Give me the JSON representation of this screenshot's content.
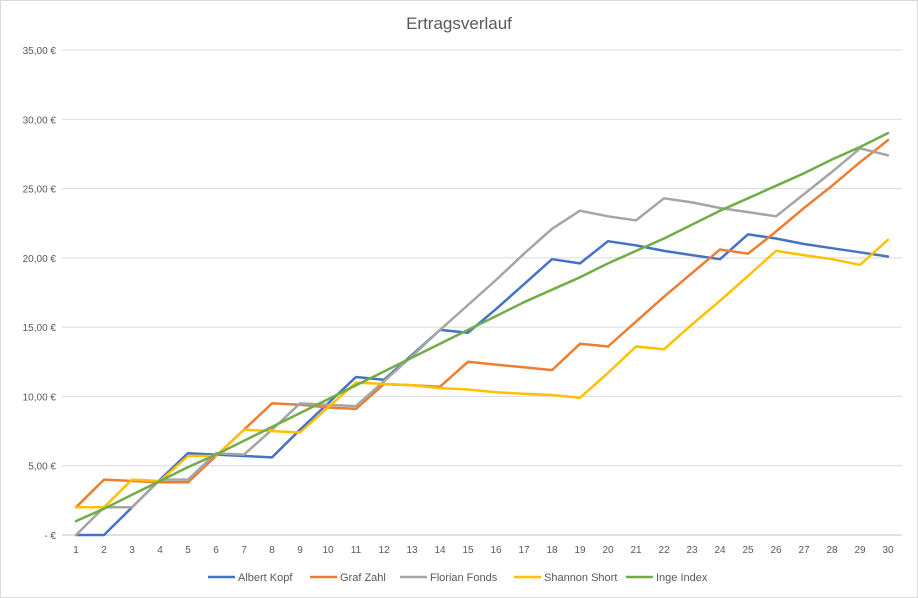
{
  "chart_data": {
    "type": "line",
    "title": "Ertragsverlauf",
    "xlabel": "",
    "ylabel": "",
    "ylim": [
      0,
      35
    ],
    "grid": true,
    "legend_position": "bottom",
    "x": [
      1,
      2,
      3,
      4,
      5,
      6,
      7,
      8,
      9,
      10,
      11,
      12,
      13,
      14,
      15,
      16,
      17,
      18,
      19,
      20,
      21,
      22,
      23,
      24,
      25,
      26,
      27,
      28,
      29,
      30
    ],
    "y_tick_labels": [
      "-   €",
      "5,00 €",
      "10,00 €",
      "15,00 €",
      "20,00 €",
      "25,00 €",
      "30,00 €",
      "35,00 €"
    ],
    "y_tick_values": [
      0,
      5,
      10,
      15,
      20,
      25,
      30,
      35
    ],
    "series": [
      {
        "name": "Albert Kopf",
        "color": "#4472c4",
        "values": [
          0.0,
          0.0,
          2.0,
          4.0,
          5.9,
          5.8,
          5.7,
          5.6,
          7.6,
          9.5,
          11.4,
          11.2,
          13.0,
          14.8,
          14.6,
          16.3,
          18.1,
          19.9,
          19.6,
          21.2,
          20.9,
          20.5,
          20.2,
          19.9,
          21.7,
          21.4,
          21.0,
          20.7,
          20.4,
          20.1
        ]
      },
      {
        "name": "Graf Zahl",
        "color": "#ed7d31",
        "values": [
          2.0,
          4.0,
          3.9,
          3.8,
          3.8,
          5.7,
          7.6,
          9.5,
          9.4,
          9.2,
          9.1,
          10.9,
          10.8,
          10.7,
          12.5,
          12.3,
          12.1,
          11.9,
          13.8,
          13.6,
          15.4,
          17.2,
          18.9,
          20.6,
          20.3,
          21.9,
          23.6,
          25.2,
          26.9,
          28.5
        ]
      },
      {
        "name": "Florian Fonds",
        "color": "#a5a5a5",
        "values": [
          0.0,
          2.0,
          2.0,
          4.0,
          4.0,
          5.9,
          5.8,
          7.6,
          9.5,
          9.4,
          9.3,
          11.1,
          12.9,
          14.8,
          16.6,
          18.4,
          20.3,
          22.1,
          23.4,
          23.0,
          22.7,
          24.3,
          24.0,
          23.6,
          23.3,
          23.0,
          24.6,
          26.2,
          27.9,
          27.4
        ]
      },
      {
        "name": "Shannon Short",
        "color": "#ffc000",
        "values": [
          2.0,
          2.0,
          4.0,
          3.9,
          5.7,
          5.7,
          7.6,
          7.5,
          7.4,
          9.2,
          11.0,
          10.9,
          10.8,
          10.6,
          10.5,
          10.3,
          10.2,
          10.1,
          9.9,
          11.7,
          13.6,
          13.4,
          15.2,
          16.9,
          18.7,
          20.5,
          20.2,
          19.9,
          19.5,
          21.3
        ]
      },
      {
        "name": "Inge Index",
        "color": "#70ad47",
        "values": [
          1.0,
          1.9,
          2.9,
          3.9,
          4.9,
          5.8,
          6.8,
          7.8,
          8.8,
          9.8,
          10.8,
          11.8,
          12.8,
          13.8,
          14.8,
          15.8,
          16.8,
          17.7,
          18.6,
          19.6,
          20.5,
          21.4,
          22.4,
          23.4,
          24.3,
          25.2,
          26.1,
          27.1,
          28.0,
          29.0
        ]
      }
    ]
  }
}
